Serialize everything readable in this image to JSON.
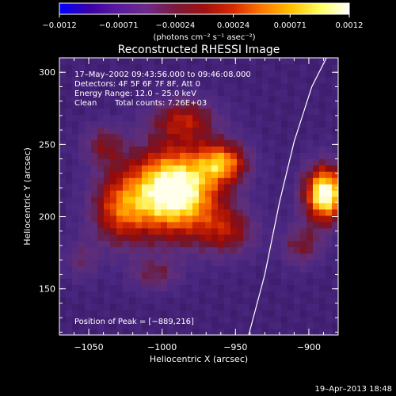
{
  "chart_data": {
    "type": "heatmap",
    "title": "Reconstructed RHESSI Image",
    "xlabel": "Heliocentric X (arcsec)",
    "ylabel": "Heliocentric Y (arcsec)",
    "xlim": [
      -1070,
      -880
    ],
    "ylim": [
      118,
      310
    ],
    "x_ticks": [
      -1050,
      -1000,
      -950,
      -900
    ],
    "x_tick_labels": [
      "−1050",
      "−1000",
      "−950",
      "−900"
    ],
    "y_ticks": [
      150,
      200,
      250,
      300
    ],
    "y_tick_labels": [
      "150",
      "200",
      "250",
      "300"
    ],
    "colorbar": {
      "range": [
        -0.0012,
        0.0012
      ],
      "tick_values": [
        -0.0012,
        -0.00071,
        -0.00024,
        0.00024,
        0.00071,
        0.0012
      ],
      "tick_labels": [
        "−0.0012",
        "−0.00071",
        "−0.00024",
        "0.00024",
        "0.00071",
        "0.0012"
      ],
      "unit_text": "(photons cm⁻² s⁻¹ asec⁻²)",
      "colors": [
        "#0000ff",
        "#3a00a8",
        "#5a1aa0",
        "#6e2a8c",
        "#7a1a3c",
        "#a01010",
        "#d82a00",
        "#ff7a00",
        "#ffc000",
        "#ffff60",
        "#ffffff"
      ]
    },
    "annotations": {
      "time_range": "17–May–2002 09:43:56.000 to 09:46:08.000",
      "detectors": "Detectors: 4F 5F 6F 7F 8F, Att 0",
      "energy_range": "Energy Range: 12.0 – 25.0 keV",
      "clean_label": "Clean",
      "total_counts": "Total counts: 7.26E+03",
      "peak_position": "Position of Peak = [−889,216]"
    },
    "peak": {
      "x": -889,
      "y": 216
    },
    "sources": [
      {
        "x": -992,
        "y": 218,
        "sigma_x": 22,
        "sigma_y": 22,
        "amplitude": 1.0
      },
      {
        "x": -958,
        "y": 238,
        "sigma_x": 12,
        "sigma_y": 10,
        "amplitude": 0.55
      },
      {
        "x": -1030,
        "y": 205,
        "sigma_x": 14,
        "sigma_y": 18,
        "amplitude": 0.45
      },
      {
        "x": -985,
        "y": 268,
        "sigma_x": 16,
        "sigma_y": 10,
        "amplitude": 0.4
      },
      {
        "x": -1040,
        "y": 250,
        "sigma_x": 10,
        "sigma_y": 10,
        "amplitude": 0.3
      },
      {
        "x": -955,
        "y": 190,
        "sigma_x": 14,
        "sigma_y": 12,
        "amplitude": 0.35
      },
      {
        "x": -889,
        "y": 216,
        "sigma_x": 10,
        "sigma_y": 14,
        "amplitude": 0.95
      },
      {
        "x": -905,
        "y": 180,
        "sigma_x": 10,
        "sigma_y": 10,
        "amplitude": 0.3
      },
      {
        "x": -1005,
        "y": 160,
        "sigma_x": 12,
        "sigma_y": 8,
        "amplitude": 0.25
      },
      {
        "x": -1055,
        "y": 170,
        "sigma_x": 8,
        "sigma_y": 10,
        "amplitude": 0.2
      }
    ],
    "limb_curve": [
      {
        "x": -941,
        "y": 118
      },
      {
        "x": -930,
        "y": 160
      },
      {
        "x": -920,
        "y": 210
      },
      {
        "x": -910,
        "y": 252
      },
      {
        "x": -898,
        "y": 290
      },
      {
        "x": -888,
        "y": 310
      }
    ]
  },
  "footer": {
    "timestamp": "19–Apr–2013 18:48"
  }
}
